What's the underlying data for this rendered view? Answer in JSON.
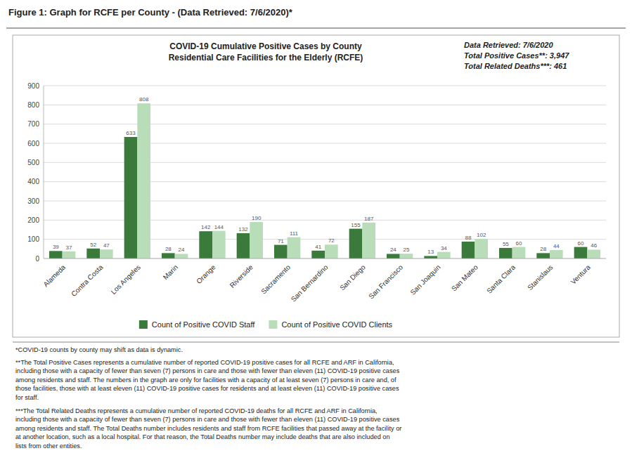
{
  "chart_data": {
    "type": "bar",
    "title": "Figure 1: Graph for RCFE per County - (Data Retrieved: 7/6/2020)*",
    "subtitle": [
      "COVID-19 Cumulative Positive Cases by County",
      "Residential Care Facilities for the Elderly (RCFE)"
    ],
    "annotations": [
      "Data Retrieved:  7/6/2020",
      "Total Positive Cases**: 3,947",
      "Total Related Deaths***: 461",
      "*COVID-19 counts by county may shift as data is dynamic.",
      "**The Total Positive Cases represents a cumulative number of reported COVID-19 positive cases for all RCFE and ARF in California,\nincluding those with a capacity of fewer than seven (7) persons in care and those with fewer than eleven (11) COVID-19 positive cases\namong residents and staff. The numbers in the graph are only for facilities with a capacity of at least seven (7) persons in care and, of\nthose facilities, those with at least eleven (11) COVID-19 positive cases for residents and at least eleven (11) COVID-19 positive cases\nfor staff.",
      "***The Total Related Deaths represents a cumulative number of reported COVID-19 deaths for all RCFE and ARF in California,\nincluding those with a capacity of fewer than seven (7) persons in care and those with fewer than eleven (11) COVID-19 positive cases\namong residents and staff. The Total Deaths number includes residents and staff from RCFE facilities that passed away at the facility or\nat another location, such as a local hospital. For that reason, the Total Deaths number may include deaths that are also included on\nlists from other entities."
    ],
    "categories": [
      "Alameda",
      "Contra Costa",
      "Los Angeles",
      "Marin",
      "Orange",
      "Riverside",
      "Sacramento",
      "San Bernardino",
      "San Diego",
      "San Francisco",
      "San Joaquin",
      "San Mateo",
      "Santa Clara",
      "Stanislaus",
      "Ventura"
    ],
    "series": [
      {
        "name": "Count of Positive COVID Staff",
        "color": "#3a7a3a",
        "values": [
          39,
          52,
          633,
          28,
          142,
          132,
          71,
          41,
          155,
          24,
          13,
          88,
          55,
          28,
          60
        ]
      },
      {
        "name": "Count of Positive COVID Clients",
        "color": "#b8ddb8",
        "values": [
          37,
          47,
          808,
          24,
          144,
          190,
          111,
          72,
          187,
          25,
          34,
          102,
          60,
          44,
          46
        ]
      }
    ],
    "ylim": [
      0,
      900
    ],
    "yticks": [
      0,
      100,
      200,
      300,
      400,
      500,
      600,
      700,
      800,
      900
    ],
    "grid": true,
    "legend": "bottom",
    "data_labels": true
  }
}
